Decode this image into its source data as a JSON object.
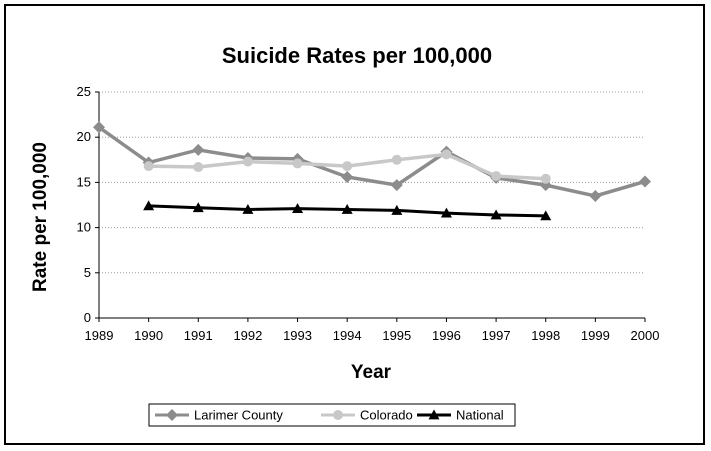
{
  "chart_data": {
    "type": "line",
    "title": "Suicide Rates per 100,000",
    "xlabel": "Year",
    "ylabel": "Rate per 100,000",
    "categories": [
      "1989",
      "1990",
      "1991",
      "1992",
      "1993",
      "1994",
      "1995",
      "1996",
      "1997",
      "1998",
      "1999",
      "2000"
    ],
    "ylim": [
      0,
      25
    ],
    "yticks": [
      "0",
      "5",
      "10",
      "15",
      "20",
      "25"
    ],
    "grid": "horizontal dotted",
    "legend": "bottom",
    "series": [
      {
        "name": "Larimer County",
        "color": "#8c8c8c",
        "marker": "diamond",
        "values": [
          21.1,
          17.2,
          18.6,
          17.7,
          17.6,
          15.6,
          14.7,
          18.4,
          15.5,
          14.7,
          13.5,
          15.1
        ]
      },
      {
        "name": "Colorado",
        "color": "#c8c8c8",
        "marker": "circle",
        "values": [
          null,
          16.8,
          16.7,
          17.3,
          17.1,
          16.8,
          17.5,
          18.1,
          15.7,
          15.4,
          null,
          null
        ]
      },
      {
        "name": "National",
        "color": "#000000",
        "marker": "triangle",
        "values": [
          null,
          12.4,
          12.2,
          12.0,
          12.1,
          12.0,
          11.9,
          11.6,
          11.4,
          11.3,
          null,
          null
        ]
      }
    ]
  }
}
